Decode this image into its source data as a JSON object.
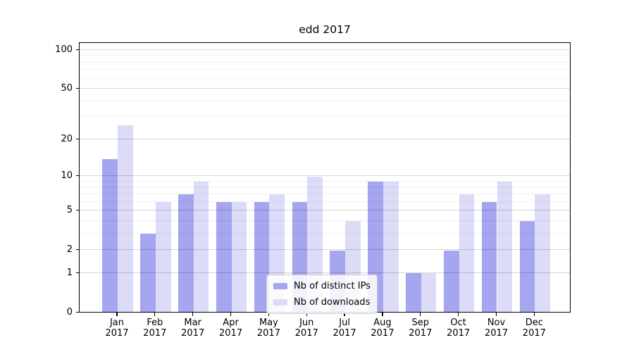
{
  "chart_data": {
    "type": "bar",
    "title": "edd 2017",
    "months": [
      "Jan",
      "Feb",
      "Mar",
      "Apr",
      "May",
      "Jun",
      "Jul",
      "Aug",
      "Sep",
      "Oct",
      "Nov",
      "Dec"
    ],
    "year_label": "2017",
    "categories": [
      "Jan 2017",
      "Feb 2017",
      "Mar 2017",
      "Apr 2017",
      "May 2017",
      "Jun 2017",
      "Jul 2017",
      "Aug 2017",
      "Sep 2017",
      "Oct 2017",
      "Nov 2017",
      "Dec 2017"
    ],
    "series": [
      {
        "name": "Nb of distinct IPs",
        "color": "#a5a5f0",
        "values": [
          14,
          3,
          7,
          6,
          6,
          6,
          2,
          9,
          1,
          2,
          6,
          4
        ]
      },
      {
        "name": "Nb of downloads",
        "color": "#dcdcf8",
        "values": [
          26,
          6,
          9,
          6,
          7,
          10,
          4,
          9,
          1,
          7,
          9,
          7
        ]
      }
    ],
    "yscale": "log1p",
    "ylim": [
      0,
      114
    ],
    "yticks": [
      0,
      1,
      2,
      5,
      10,
      20,
      50,
      100
    ],
    "minor_yticks": [
      3,
      4,
      6,
      7,
      8,
      9,
      30,
      40,
      60,
      70,
      80,
      90
    ],
    "grid": true,
    "legend_position": "lower-center"
  }
}
